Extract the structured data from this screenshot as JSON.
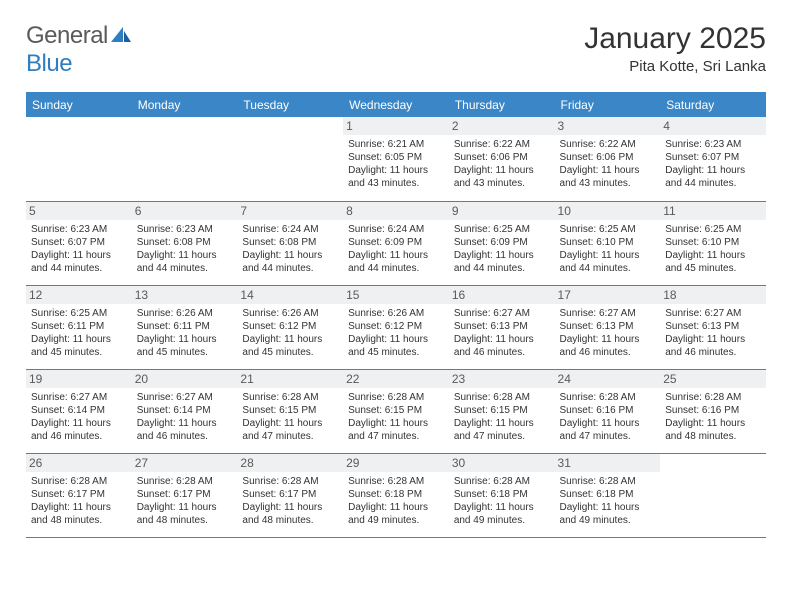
{
  "logo": {
    "word1": "General",
    "word2": "Blue"
  },
  "title": "January 2025",
  "location": "Pita Kotte, Sri Lanka",
  "colors": {
    "header_bg": "#3b86c6",
    "header_text": "#ffffff",
    "border": "#3b86c6",
    "daynum_bg": "#eef0f2",
    "body_text": "#333333",
    "logo_gray": "#5a5a5a",
    "logo_blue": "#2f7ec1"
  },
  "day_headers": [
    "Sunday",
    "Monday",
    "Tuesday",
    "Wednesday",
    "Thursday",
    "Friday",
    "Saturday"
  ],
  "weeks": [
    [
      {
        "n": "",
        "sr": "",
        "ss": "",
        "dl": ""
      },
      {
        "n": "",
        "sr": "",
        "ss": "",
        "dl": ""
      },
      {
        "n": "",
        "sr": "",
        "ss": "",
        "dl": ""
      },
      {
        "n": "1",
        "sr": "6:21 AM",
        "ss": "6:05 PM",
        "dl": "11 hours and 43 minutes."
      },
      {
        "n": "2",
        "sr": "6:22 AM",
        "ss": "6:06 PM",
        "dl": "11 hours and 43 minutes."
      },
      {
        "n": "3",
        "sr": "6:22 AM",
        "ss": "6:06 PM",
        "dl": "11 hours and 43 minutes."
      },
      {
        "n": "4",
        "sr": "6:23 AM",
        "ss": "6:07 PM",
        "dl": "11 hours and 44 minutes."
      }
    ],
    [
      {
        "n": "5",
        "sr": "6:23 AM",
        "ss": "6:07 PM",
        "dl": "11 hours and 44 minutes."
      },
      {
        "n": "6",
        "sr": "6:23 AM",
        "ss": "6:08 PM",
        "dl": "11 hours and 44 minutes."
      },
      {
        "n": "7",
        "sr": "6:24 AM",
        "ss": "6:08 PM",
        "dl": "11 hours and 44 minutes."
      },
      {
        "n": "8",
        "sr": "6:24 AM",
        "ss": "6:09 PM",
        "dl": "11 hours and 44 minutes."
      },
      {
        "n": "9",
        "sr": "6:25 AM",
        "ss": "6:09 PM",
        "dl": "11 hours and 44 minutes."
      },
      {
        "n": "10",
        "sr": "6:25 AM",
        "ss": "6:10 PM",
        "dl": "11 hours and 44 minutes."
      },
      {
        "n": "11",
        "sr": "6:25 AM",
        "ss": "6:10 PM",
        "dl": "11 hours and 45 minutes."
      }
    ],
    [
      {
        "n": "12",
        "sr": "6:25 AM",
        "ss": "6:11 PM",
        "dl": "11 hours and 45 minutes."
      },
      {
        "n": "13",
        "sr": "6:26 AM",
        "ss": "6:11 PM",
        "dl": "11 hours and 45 minutes."
      },
      {
        "n": "14",
        "sr": "6:26 AM",
        "ss": "6:12 PM",
        "dl": "11 hours and 45 minutes."
      },
      {
        "n": "15",
        "sr": "6:26 AM",
        "ss": "6:12 PM",
        "dl": "11 hours and 45 minutes."
      },
      {
        "n": "16",
        "sr": "6:27 AM",
        "ss": "6:13 PM",
        "dl": "11 hours and 46 minutes."
      },
      {
        "n": "17",
        "sr": "6:27 AM",
        "ss": "6:13 PM",
        "dl": "11 hours and 46 minutes."
      },
      {
        "n": "18",
        "sr": "6:27 AM",
        "ss": "6:13 PM",
        "dl": "11 hours and 46 minutes."
      }
    ],
    [
      {
        "n": "19",
        "sr": "6:27 AM",
        "ss": "6:14 PM",
        "dl": "11 hours and 46 minutes."
      },
      {
        "n": "20",
        "sr": "6:27 AM",
        "ss": "6:14 PM",
        "dl": "11 hours and 46 minutes."
      },
      {
        "n": "21",
        "sr": "6:28 AM",
        "ss": "6:15 PM",
        "dl": "11 hours and 47 minutes."
      },
      {
        "n": "22",
        "sr": "6:28 AM",
        "ss": "6:15 PM",
        "dl": "11 hours and 47 minutes."
      },
      {
        "n": "23",
        "sr": "6:28 AM",
        "ss": "6:15 PM",
        "dl": "11 hours and 47 minutes."
      },
      {
        "n": "24",
        "sr": "6:28 AM",
        "ss": "6:16 PM",
        "dl": "11 hours and 47 minutes."
      },
      {
        "n": "25",
        "sr": "6:28 AM",
        "ss": "6:16 PM",
        "dl": "11 hours and 48 minutes."
      }
    ],
    [
      {
        "n": "26",
        "sr": "6:28 AM",
        "ss": "6:17 PM",
        "dl": "11 hours and 48 minutes."
      },
      {
        "n": "27",
        "sr": "6:28 AM",
        "ss": "6:17 PM",
        "dl": "11 hours and 48 minutes."
      },
      {
        "n": "28",
        "sr": "6:28 AM",
        "ss": "6:17 PM",
        "dl": "11 hours and 48 minutes."
      },
      {
        "n": "29",
        "sr": "6:28 AM",
        "ss": "6:18 PM",
        "dl": "11 hours and 49 minutes."
      },
      {
        "n": "30",
        "sr": "6:28 AM",
        "ss": "6:18 PM",
        "dl": "11 hours and 49 minutes."
      },
      {
        "n": "31",
        "sr": "6:28 AM",
        "ss": "6:18 PM",
        "dl": "11 hours and 49 minutes."
      },
      {
        "n": "",
        "sr": "",
        "ss": "",
        "dl": ""
      }
    ]
  ],
  "labels": {
    "sunrise": "Sunrise:",
    "sunset": "Sunset:",
    "daylight": "Daylight:"
  }
}
